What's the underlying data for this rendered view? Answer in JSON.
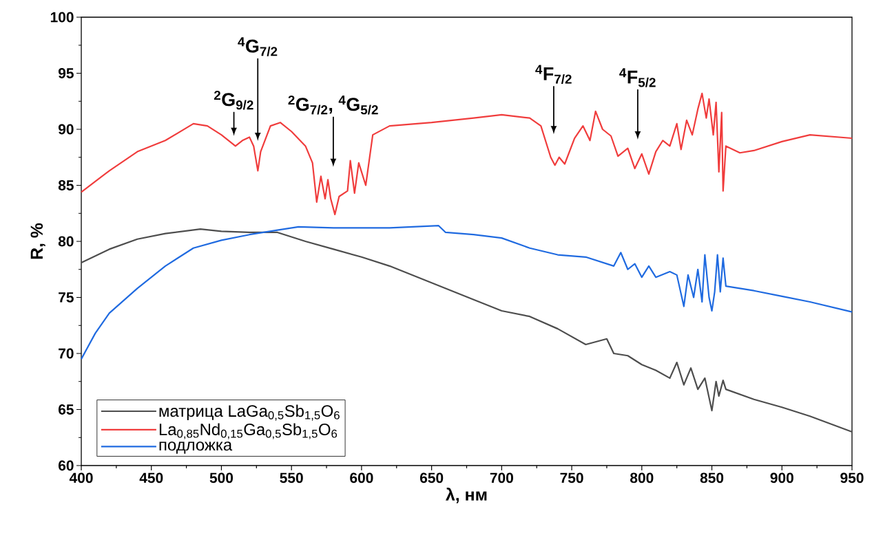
{
  "chart_data": {
    "type": "line",
    "xlabel": "λ, нм",
    "ylabel": "R, %",
    "xlim": [
      400,
      950
    ],
    "ylim": [
      60,
      100
    ],
    "xticks": [
      400,
      450,
      500,
      550,
      600,
      650,
      700,
      750,
      800,
      850,
      900,
      950
    ],
    "yticks": [
      60,
      65,
      70,
      75,
      80,
      85,
      90,
      95,
      100
    ],
    "grid": false,
    "legend": "bottom left",
    "series": [
      {
        "name": "матрица LaGa$_{0,5}$Sb$_{1,5}$O$_{6}$",
        "color": "#4d4d4d",
        "x": [
          400,
          420,
          440,
          460,
          485,
          500,
          520,
          540,
          560,
          580,
          600,
          620,
          650,
          680,
          700,
          720,
          740,
          760,
          775,
          780,
          790,
          800,
          810,
          820,
          825,
          830,
          835,
          840,
          845,
          850,
          853,
          855,
          858,
          860,
          880,
          900,
          920,
          950
        ],
        "values": [
          78.1,
          79.3,
          80.2,
          80.7,
          81.1,
          80.9,
          80.8,
          80.8,
          80.0,
          79.3,
          78.6,
          77.8,
          76.3,
          74.8,
          73.8,
          73.3,
          72.2,
          70.8,
          71.3,
          70.0,
          69.8,
          69.0,
          68.5,
          67.8,
          69.2,
          67.2,
          68.7,
          66.8,
          67.8,
          64.9,
          67.5,
          66.2,
          67.6,
          66.8,
          65.9,
          65.2,
          64.4,
          63.0
        ]
      },
      {
        "name": "La$_{0,85}$Nd$_{0,15}$Ga$_{0,5}$Sb$_{1,5}$O$_{6}$",
        "color": "#f03c3c",
        "x": [
          400,
          420,
          440,
          460,
          480,
          490,
          500,
          505,
          510,
          515,
          520,
          523,
          526,
          528,
          535,
          542,
          550,
          560,
          565,
          568,
          571,
          574,
          576,
          578,
          581,
          584,
          590,
          592,
          595,
          598,
          603,
          608,
          620,
          650,
          680,
          700,
          720,
          728,
          735,
          738,
          741,
          745,
          752,
          758,
          763,
          767,
          772,
          778,
          783,
          790,
          795,
          800,
          805,
          810,
          815,
          820,
          825,
          828,
          832,
          836,
          840,
          843,
          846,
          848,
          851,
          853,
          855,
          857,
          858,
          860,
          870,
          880,
          900,
          920,
          950
        ],
        "values": [
          84.4,
          86.3,
          88.0,
          89.0,
          90.5,
          90.3,
          89.5,
          89.0,
          88.5,
          89.0,
          89.3,
          88.5,
          86.3,
          88.0,
          90.3,
          90.6,
          89.8,
          88.5,
          87.0,
          83.5,
          85.8,
          83.8,
          85.5,
          83.8,
          82.4,
          84.0,
          84.5,
          87.2,
          84.3,
          87.0,
          85.0,
          89.5,
          90.3,
          90.6,
          91.0,
          91.3,
          91.0,
          90.3,
          87.5,
          86.8,
          87.5,
          86.9,
          89.2,
          90.3,
          89.0,
          91.6,
          90.0,
          89.4,
          87.6,
          88.3,
          86.5,
          87.8,
          86.0,
          88.0,
          89.0,
          88.5,
          90.5,
          88.2,
          90.8,
          89.5,
          91.8,
          93.2,
          91.0,
          92.7,
          89.5,
          92.4,
          86.2,
          91.5,
          84.5,
          88.5,
          87.9,
          88.1,
          88.9,
          89.5,
          89.2
        ]
      },
      {
        "name": "подложка",
        "color": "#1f6ae0",
        "x": [
          400,
          410,
          420,
          440,
          460,
          480,
          500,
          520,
          540,
          555,
          580,
          620,
          655,
          660,
          680,
          700,
          720,
          740,
          760,
          780,
          785,
          790,
          795,
          800,
          805,
          810,
          820,
          825,
          830,
          833,
          837,
          840,
          843,
          845,
          848,
          850,
          852,
          854,
          856,
          858,
          860,
          880,
          900,
          920,
          950
        ],
        "values": [
          69.5,
          71.8,
          73.6,
          75.8,
          77.8,
          79.4,
          80.1,
          80.6,
          81.0,
          81.3,
          81.2,
          81.2,
          81.4,
          80.8,
          80.6,
          80.3,
          79.4,
          78.8,
          78.6,
          77.8,
          79.0,
          77.5,
          78.0,
          76.8,
          77.8,
          76.8,
          77.3,
          77.0,
          74.2,
          77.0,
          75.0,
          77.5,
          74.6,
          78.8,
          75.0,
          73.8,
          75.5,
          78.8,
          75.5,
          78.5,
          76.0,
          75.6,
          75.1,
          74.6,
          73.7
        ]
      }
    ],
    "annotations": [
      "$^{2}$G$_{9/2}$",
      "$^{4}$G$_{7/2}$",
      "$^{2}$G$_{7/2}$, $^{4}$G$_{5/2}$",
      "$^{4}$F$_{7/2}$",
      "$^{4}$F$_{5/2}$"
    ]
  }
}
